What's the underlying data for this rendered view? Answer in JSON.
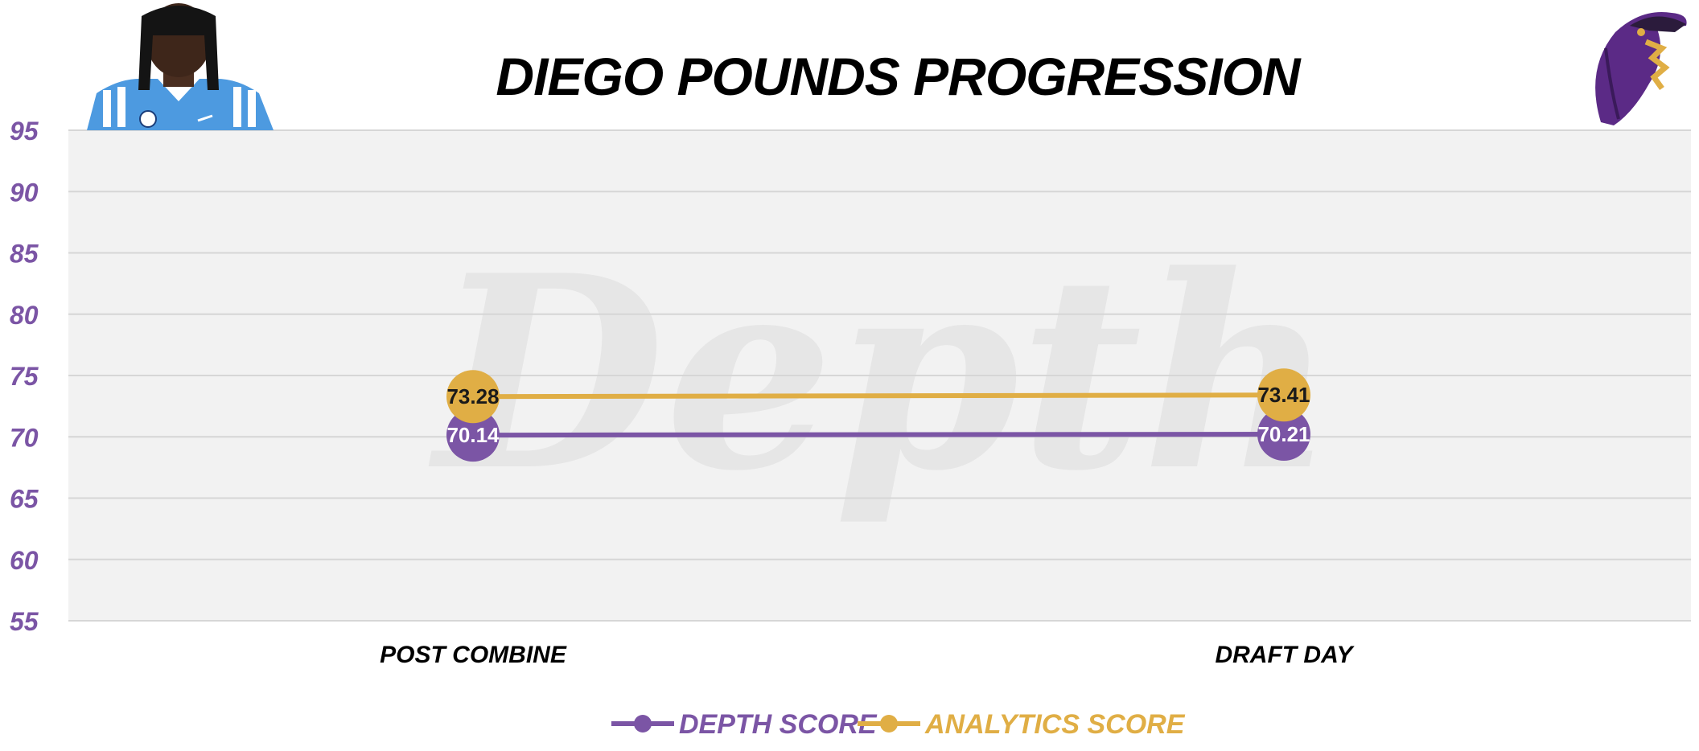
{
  "colors": {
    "depth": "#7b55a5",
    "analytics": "#e0ae45",
    "plot_bg": "#f2f2f2",
    "grid": "#d6d6d6",
    "axis_label": "#7b55a5",
    "watermark": "#e6e6e6"
  },
  "watermark": {
    "text": "Depth"
  },
  "icons": {
    "player": "player-headshot-icon",
    "team": "raven-logo-icon"
  },
  "chart_data": {
    "type": "line",
    "title": "DIEGO POUNDS PROGRESSION",
    "categories": [
      "POST COMBINE",
      "DRAFT DAY"
    ],
    "ylim": [
      55,
      95
    ],
    "yticks": [
      95,
      90,
      85,
      80,
      75,
      70,
      65,
      60,
      55
    ],
    "grid": true,
    "legend_position": "bottom-center",
    "series": [
      {
        "name": "DEPTH SCORE",
        "color_key": "depth",
        "label_color": "#ffffff",
        "values": [
          70.14,
          70.21
        ]
      },
      {
        "name": "ANALYTICS SCORE",
        "color_key": "analytics",
        "label_color": "#1a1a1a",
        "values": [
          73.28,
          73.41
        ]
      }
    ]
  }
}
